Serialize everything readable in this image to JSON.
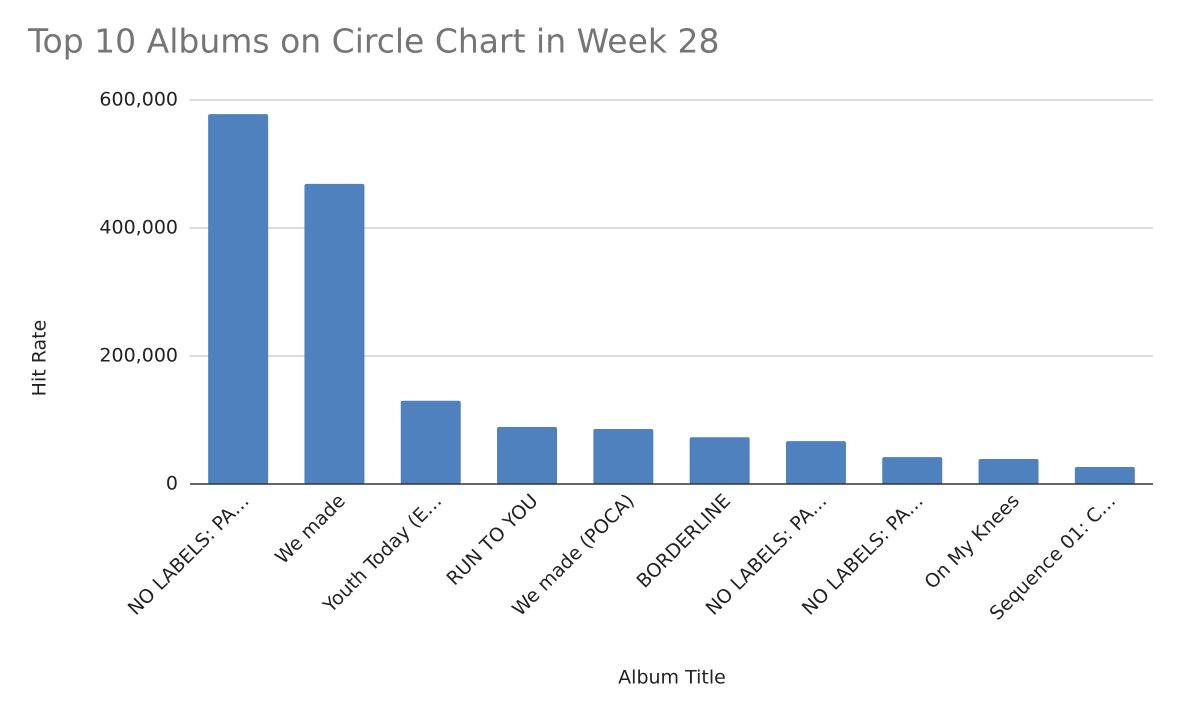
{
  "chart_data": {
    "type": "bar",
    "title": "Top 10 Albums on Circle Chart in Week 28",
    "x_label": "Album Title",
    "y_label": "Hit Rate",
    "categories": [
      "NO LABELS: PA…",
      "We made",
      "Youth Today (E…",
      "RUN TO YOU",
      "We made (POCA)",
      "BORDERLINE",
      "NO LABELS: PA…",
      "NO LABELS: PA…",
      "On My Knees",
      "Sequence 01: C…"
    ],
    "values": [
      578000,
      469000,
      130000,
      89000,
      86000,
      73000,
      67000,
      42000,
      39000,
      26500
    ],
    "color": "#4e81bd",
    "ylim": [
      0,
      600000
    ],
    "yticks": [
      0,
      {
        "value": 200000,
        "label": "200,000"
      },
      {
        "value": 400000,
        "label": "400,000"
      },
      {
        "value": 600000,
        "label": "600,000"
      }
    ],
    "grid": true
  }
}
